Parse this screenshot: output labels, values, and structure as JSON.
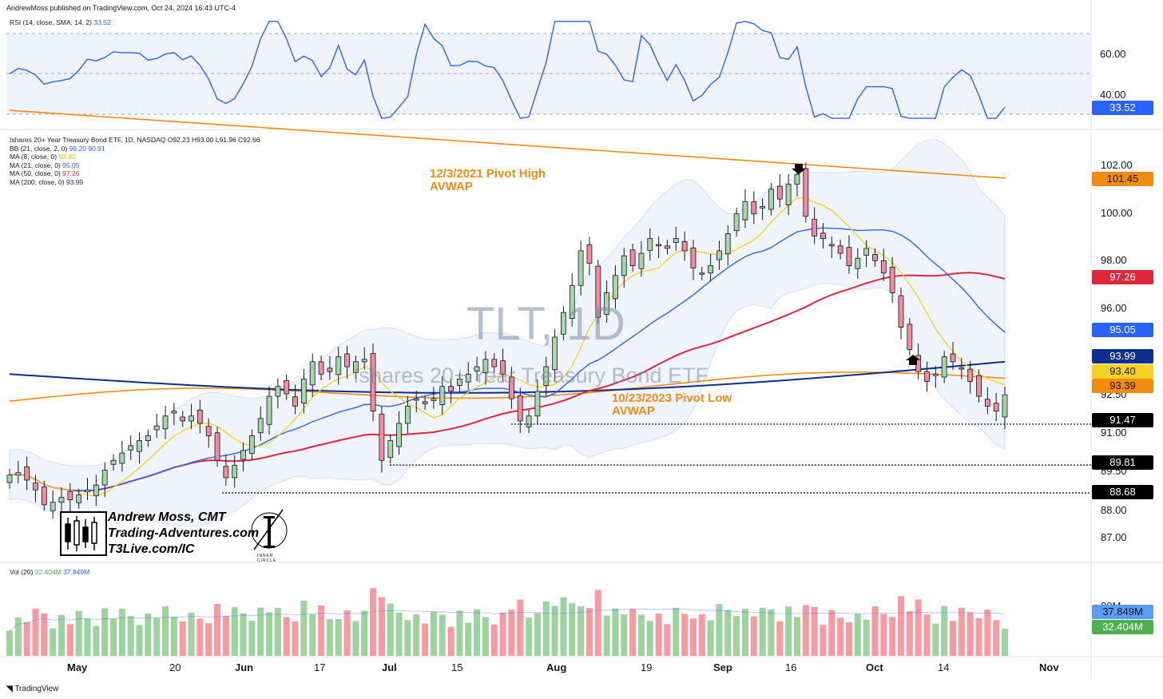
{
  "header": {
    "publisher": "AndrewMoss published on TradingView.com, Oct 24, 2024 16:43 UTC-4"
  },
  "rsi_pane": {
    "label": "RSI (14, close, SMA, 14, 2)",
    "value": "33.52",
    "axis": [
      "60.00",
      "40.00"
    ]
  },
  "price_pane": {
    "symbol_line": "Ishares 20+ Year Treasury Bond ETF, 1D, NASDAQ  O92.23  H93.00  L91.96  C92.66",
    "indicators": [
      {
        "label": "BB (21, close, 2, 0)",
        "values": "99.20  90.91",
        "color": "#2962ff"
      },
      {
        "label": "MA (8, close, 0)",
        "values": "93.40",
        "color": "#f5d322"
      },
      {
        "label": "MA (21, close, 0)",
        "values": "95.05",
        "color": "#2962ff"
      },
      {
        "label": "MA (50, close, 0)",
        "values": "97.26",
        "color": "#e0263a"
      },
      {
        "label": "MA (200, close, 0)",
        "values": "93.99",
        "color": "#0d2f8c"
      }
    ],
    "watermark_ticker": "TLT, 1D",
    "watermark_name": "Ishares 20+ Year Treasury Bond ETF",
    "annotations": {
      "pivot_high_line1": "12/3/2021 Pivot High",
      "pivot_high_line2": "AVWAP",
      "pivot_low_line1": "10/23/2023 Pivot Low",
      "pivot_low_line2": "AVWAP"
    },
    "axis": [
      "102.00",
      "100.00",
      "98.00",
      "96.00",
      "92.50",
      "91.00",
      "89.50",
      "88.00",
      "87.00"
    ],
    "price_tags": [
      {
        "value": "101.45",
        "bg": "#f28b10",
        "fg": "#131722"
      },
      {
        "value": "97.26",
        "bg": "#e0263a",
        "fg": "#ffffff"
      },
      {
        "value": "95.05",
        "bg": "#2962ff",
        "fg": "#ffffff"
      },
      {
        "value": "93.99",
        "bg": "#0d2f8c",
        "fg": "#ffffff"
      },
      {
        "value": "93.40",
        "bg": "#f5d322",
        "fg": "#131722"
      },
      {
        "value": "93.39",
        "bg": "#f28b10",
        "fg": "#131722"
      },
      {
        "value": "91.47",
        "bg": "#000000",
        "fg": "#ffffff"
      },
      {
        "value": "89.81",
        "bg": "#000000",
        "fg": "#ffffff"
      },
      {
        "value": "88.68",
        "bg": "#000000",
        "fg": "#ffffff"
      }
    ],
    "branding": {
      "line1": "Andrew Moss, CMT",
      "line2": "Trading-Adventures.com",
      "line3": "T3Live.com/IC",
      "logo_text": "INNER CIRCLE"
    }
  },
  "volume_pane": {
    "label": "Vol (20)",
    "v1": "32.404M",
    "v2": "37.849M",
    "axis": [
      "80M"
    ],
    "tags": [
      {
        "value": "37.849M",
        "bg": "#5b9cf6",
        "fg": "#131722"
      },
      {
        "value": "32.404M",
        "bg": "#4caf50",
        "fg": "#ffffff"
      }
    ]
  },
  "time_axis": [
    "May",
    "20",
    "Jun",
    "17",
    "Jul",
    "15",
    "Aug",
    "19",
    "Sep",
    "16",
    "Oct",
    "14",
    "Nov"
  ],
  "footer": {
    "brand": "TradingView"
  },
  "colors": {
    "up": "#a5d6a7",
    "down": "#f28b9b",
    "rsi": "#2962ff",
    "avwap": "#f28b10"
  },
  "chart_data": {
    "type": "candlestick",
    "symbol": "TLT",
    "interval": "1D",
    "ohlc_last": {
      "open": 92.23,
      "high": 93.0,
      "low": 91.96,
      "close": 92.66
    },
    "closes": [
      89.4,
      89.5,
      89.2,
      88.8,
      88.2,
      88.3,
      88.5,
      88.4,
      88.6,
      88.8,
      89.0,
      89.6,
      90.0,
      90.3,
      90.6,
      90.8,
      91.0,
      91.4,
      91.8,
      92.0,
      91.6,
      91.8,
      91.5,
      91.0,
      90.0,
      89.3,
      89.8,
      90.4,
      91.0,
      91.7,
      92.6,
      93.0,
      92.7,
      92.2,
      93.3,
      94.0,
      93.5,
      93.6,
      94.2,
      93.8,
      94.0,
      94.1,
      92.0,
      90.0,
      90.8,
      91.5,
      92.2,
      92.5,
      92.3,
      92.5,
      93.0,
      92.8,
      93.3,
      93.5,
      93.8,
      94.1,
      93.8,
      93.5,
      92.5,
      91.6,
      91.8,
      92.8,
      93.8,
      95.0,
      96.0,
      97.1,
      98.5,
      98.0,
      95.8,
      96.8,
      97.5,
      98.3,
      97.9,
      98.4,
      99.0,
      98.7,
      98.6,
      99.0,
      98.5,
      97.8,
      97.6,
      97.9,
      98.5,
      99.2,
      100.0,
      100.5,
      100.0,
      100.3,
      101.0,
      100.6,
      101.2,
      101.6,
      99.9,
      99.1,
      99.0,
      98.7,
      98.4,
      97.9,
      98.2,
      98.6,
      98.1,
      97.6,
      96.8,
      95.4,
      94.5,
      93.6,
      93.2,
      93.5,
      94.2,
      94.0,
      93.7,
      93.2,
      92.6,
      92.2,
      92.0,
      92.66
    ],
    "ma8_last": 93.4,
    "ma21_last": 95.05,
    "ma50_last": 97.26,
    "ma200_last": 93.99,
    "bb_upper_last": 99.2,
    "bb_lower_last": 90.91,
    "avwap_2021_last": 101.45,
    "avwap_2023_last": 93.39,
    "support_levels": [
      91.47,
      89.81,
      88.68
    ],
    "rsi_last": 33.52,
    "rsi_range": [
      20,
      75
    ],
    "ylim": [
      86.5,
      103.5
    ],
    "volume_last": 32.404,
    "volume_avg_last": 37.849,
    "x_ticks": [
      "May",
      "20",
      "Jun",
      "17",
      "Jul",
      "15",
      "Aug",
      "19",
      "Sep",
      "16",
      "Oct",
      "14",
      "Nov"
    ]
  }
}
